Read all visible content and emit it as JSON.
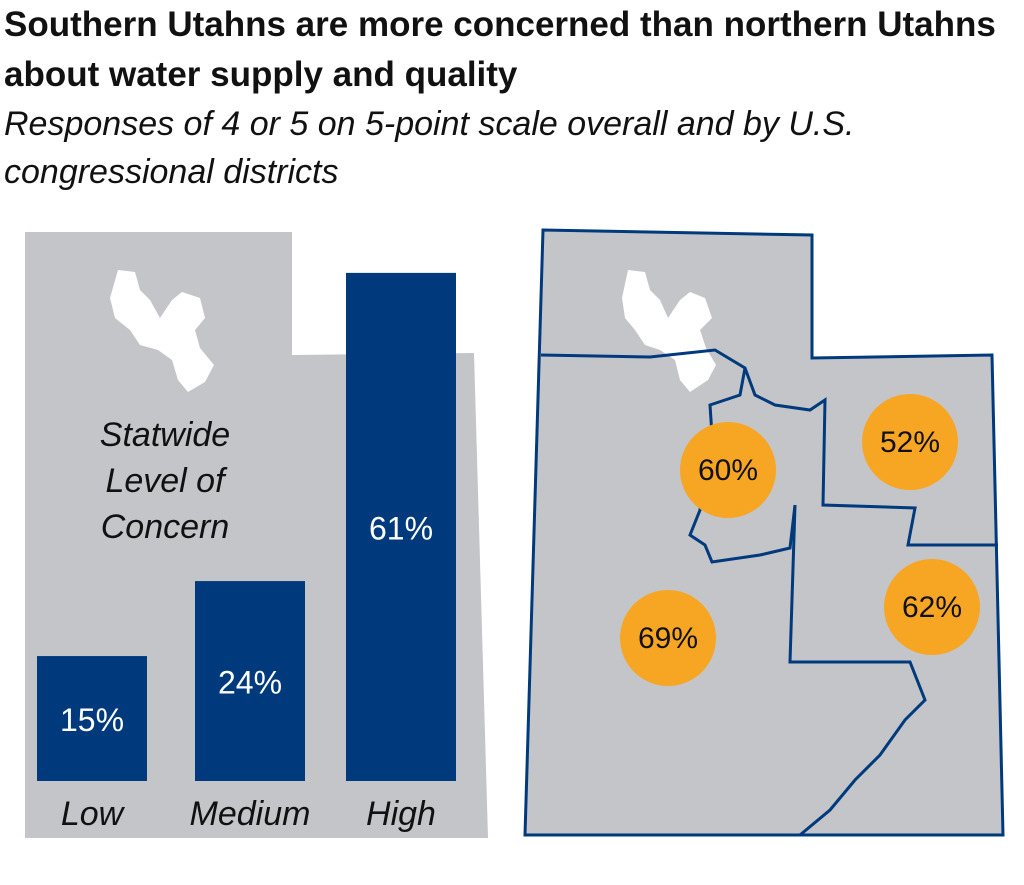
{
  "title": "Southern Utahns are more concerned than northern Utahns about water supply and quality",
  "subtitle": "Responses of 4 or 5 on 5-point scale overall and by U.S. congressional districts",
  "chart_data": [
    {
      "type": "bar",
      "title": "Statwide Level of Concern",
      "categories": [
        "Low",
        "Medium",
        "High"
      ],
      "values": [
        15,
        24,
        61
      ],
      "value_labels": [
        "15%",
        "24%",
        "61%"
      ],
      "color": "#003a7d"
    },
    {
      "type": "map",
      "values": [
        60,
        52,
        62,
        69
      ],
      "value_labels": [
        "60%",
        "52%",
        "62%",
        "69%"
      ],
      "color": "#f6a623"
    }
  ]
}
